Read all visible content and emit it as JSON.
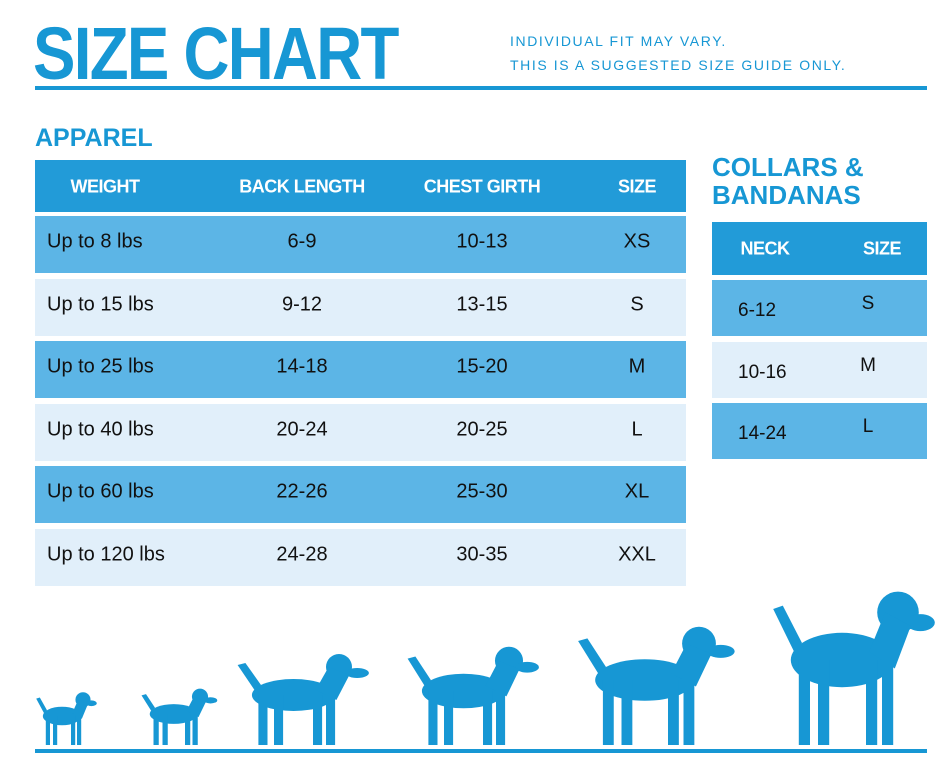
{
  "header": {
    "title": "SIZE CHART",
    "notes": [
      "INDIVIDUAL FIT MAY VARY.",
      "THIS IS A SUGGESTED SIZE GUIDE ONLY."
    ]
  },
  "apparel": {
    "title": "APPAREL",
    "columns": [
      "WEIGHT",
      "BACK LENGTH",
      "CHEST GIRTH",
      "SIZE"
    ],
    "rows": [
      [
        "Up to 8 lbs",
        "6-9",
        "10-13",
        "XS"
      ],
      [
        "Up to 15 lbs",
        "9-12",
        "13-15",
        "S"
      ],
      [
        "Up to 25 lbs",
        "14-18",
        "15-20",
        "M"
      ],
      [
        "Up to 40 lbs",
        "20-24",
        "20-25",
        "L"
      ],
      [
        "Up to 60 lbs",
        "22-26",
        "25-30",
        "XL"
      ],
      [
        "Up to 120 lbs",
        "24-28",
        "30-35",
        "XXL"
      ]
    ]
  },
  "collars": {
    "title": [
      "COLLARS &",
      "BANDANAS"
    ],
    "columns": [
      "NECK",
      "SIZE"
    ],
    "rows": [
      [
        "6-12",
        "S"
      ],
      [
        "10-16",
        "M"
      ],
      [
        "14-24",
        "L"
      ]
    ]
  }
}
